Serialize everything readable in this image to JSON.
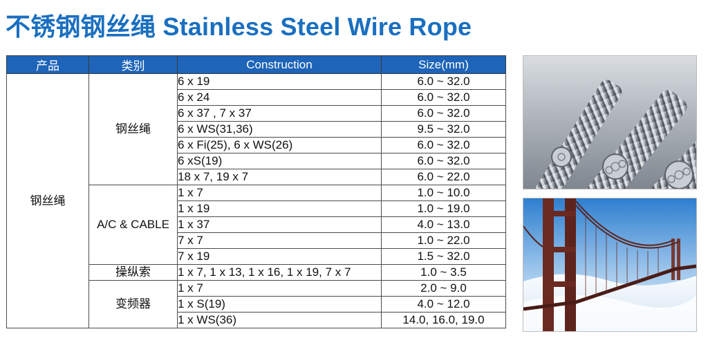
{
  "header": {
    "title_cn": "不锈钢钢丝绳",
    "title_en": "Stainless Steel Wire Rope"
  },
  "table": {
    "columns": [
      "产品",
      "类别",
      "Construction",
      "Size(mm)"
    ],
    "product": "钢丝绳",
    "groups": [
      {
        "category": "钢丝绳",
        "rows": [
          {
            "construction": "6 x 19",
            "size": "6.0 ~ 32.0"
          },
          {
            "construction": "6 x 24",
            "size": "6.0 ~ 32.0"
          },
          {
            "construction": "6 x 37 , 7 x 37",
            "size": "6.0 ~ 32.0"
          },
          {
            "construction": "6 x WS(31,36)",
            "size": "9.5 ~ 32.0"
          },
          {
            "construction": "6 x Fi(25), 6 x WS(26)",
            "size": "6.0 ~ 32.0"
          },
          {
            "construction": "6 xS(19)",
            "size": "6.0 ~ 32.0"
          },
          {
            "construction": "18 x 7, 19 x 7",
            "size": "6.0 ~ 22.0"
          }
        ]
      },
      {
        "category": "A/C & CABLE",
        "rows": [
          {
            "construction": "1 x 7",
            "size": "1.0 ~ 10.0"
          },
          {
            "construction": "1 x 19",
            "size": "1.0 ~ 19.0"
          },
          {
            "construction": "1 x 37",
            "size": "4.0 ~ 13.0"
          },
          {
            "construction": "7 x 7",
            "size": "1.0 ~ 22.0"
          },
          {
            "construction": "7 x 19",
            "size": "1.5 ~ 32.0"
          }
        ]
      },
      {
        "category": "操纵索",
        "rows": [
          {
            "construction": "1 x 7, 1 x 13, 1 x 16, 1 x 19, 7 x 7",
            "size": "1.0 ~ 3.5"
          }
        ]
      },
      {
        "category": "变频器",
        "rows": [
          {
            "construction": "1 x 7",
            "size": "2.0 ~ 9.0"
          },
          {
            "construction": "1 x S(19)",
            "size": "4.0 ~ 12.0"
          },
          {
            "construction": "1 x WS(36)",
            "size": "14.0, 16.0, 19.0"
          }
        ]
      }
    ]
  },
  "colors": {
    "title": "#1a6fc0",
    "header_bg": "#1e64b8",
    "header_text": "#ffffff"
  },
  "images": [
    {
      "name": "wire-rope-photo"
    },
    {
      "name": "suspension-bridge-photo"
    }
  ]
}
